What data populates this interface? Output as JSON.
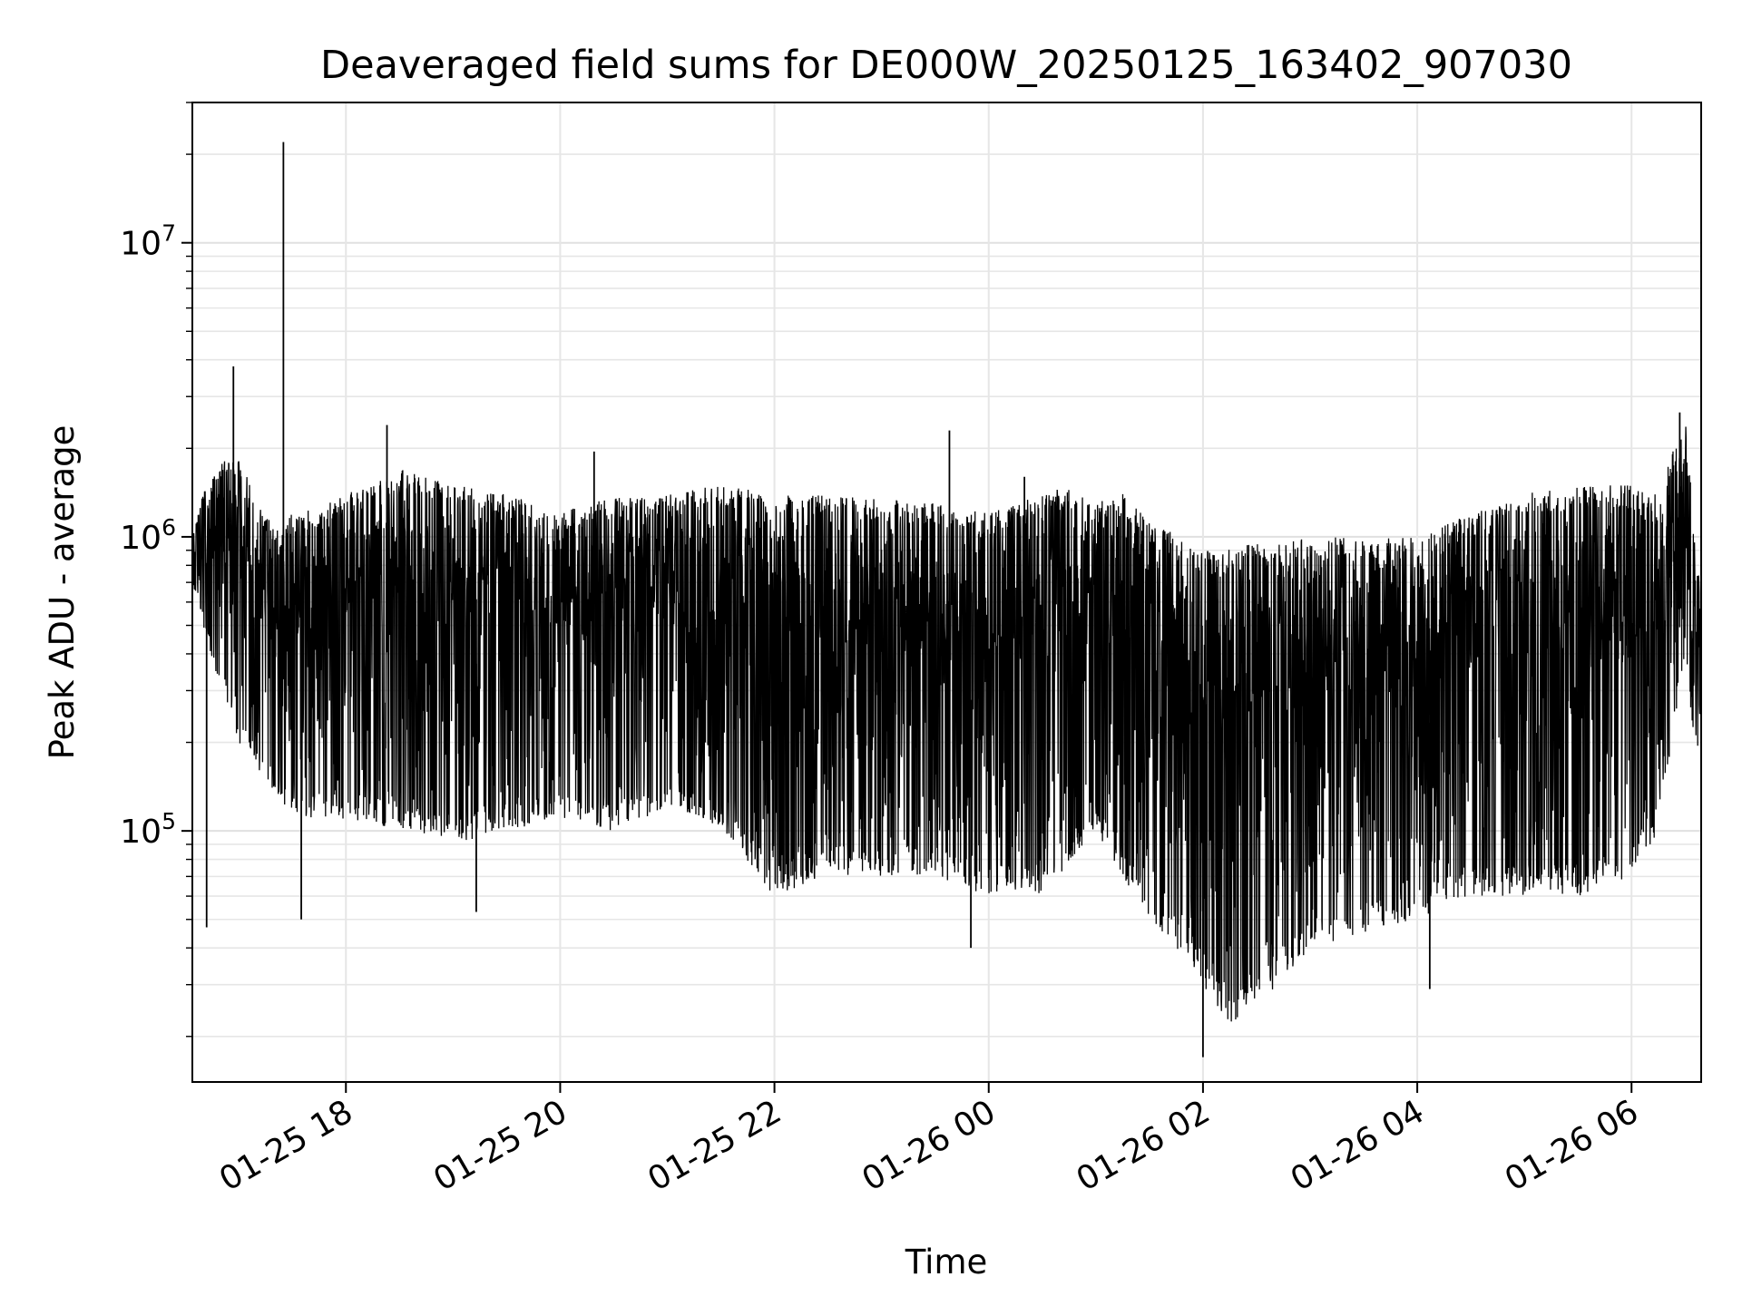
{
  "chart_data": {
    "type": "line",
    "title": "Deaveraged field sums for DE000W_20250125_163402_907030",
    "xlabel": "Time",
    "ylabel": "Peak ADU - average",
    "x_scale": "time",
    "y_scale": "log",
    "xlim": [
      "2025-01-25 16:34",
      "2025-01-26 06:39"
    ],
    "ylim": [
      14000,
      30000000
    ],
    "grid": true,
    "line_color": "#000000",
    "x_ticks": [
      "2025-01-25 18:00",
      "2025-01-25 20:00",
      "2025-01-25 22:00",
      "2025-01-26 00:00",
      "2025-01-26 02:00",
      "2025-01-26 04:00",
      "2025-01-26 06:00"
    ],
    "x_tick_labels": [
      "01-25 18",
      "01-25 20",
      "01-25 22",
      "01-26 00",
      "01-26 02",
      "01-26 04",
      "01-26 06"
    ],
    "y_ticks": [
      {
        "value": 100000,
        "base": "10",
        "exp": "5"
      },
      {
        "value": 1000000,
        "base": "10",
        "exp": "6"
      },
      {
        "value": 10000000,
        "base": "10",
        "exp": "7"
      }
    ],
    "series": [
      {
        "upper_envelope": {
          "x": [
            "2025-01-25 16:34",
            "2025-01-25 16:40",
            "2025-01-25 16:50",
            "2025-01-25 17:00",
            "2025-01-25 17:10",
            "2025-01-25 17:20",
            "2025-01-25 17:30",
            "2025-01-25 17:45",
            "2025-01-25 18:00",
            "2025-01-25 18:15",
            "2025-01-25 18:30",
            "2025-01-25 19:00",
            "2025-01-25 19:30",
            "2025-01-25 20:00",
            "2025-01-25 20:15",
            "2025-01-25 20:30",
            "2025-01-25 21:00",
            "2025-01-25 21:30",
            "2025-01-25 22:00",
            "2025-01-25 22:30",
            "2025-01-25 23:00",
            "2025-01-25 23:30",
            "2025-01-26 00:00",
            "2025-01-26 00:30",
            "2025-01-26 00:45",
            "2025-01-26 01:00",
            "2025-01-26 01:15",
            "2025-01-26 01:30",
            "2025-01-26 01:45",
            "2025-01-26 02:00",
            "2025-01-26 02:30",
            "2025-01-26 03:00",
            "2025-01-26 03:30",
            "2025-01-26 04:00",
            "2025-01-26 04:30",
            "2025-01-26 05:00",
            "2025-01-26 05:30",
            "2025-01-26 06:00",
            "2025-01-26 06:15",
            "2025-01-26 06:30",
            "2025-01-26 06:39"
          ],
          "y": [
            1000000,
            1400000,
            1800000,
            1900000,
            1300000,
            1100000,
            1200000,
            1250000,
            1400000,
            1500000,
            1700000,
            1500000,
            1400000,
            1200000,
            1300000,
            1350000,
            1400000,
            1500000,
            1400000,
            1400000,
            1350000,
            1300000,
            1200000,
            1400000,
            1500000,
            1300000,
            1400000,
            1200000,
            1000000,
            900000,
            950000,
            1000000,
            1000000,
            1000000,
            1200000,
            1400000,
            1500000,
            1500000,
            1400000,
            2600000,
            600000
          ]
        },
        "lower_envelope": {
          "x": [
            "2025-01-25 16:34",
            "2025-01-25 16:40",
            "2025-01-25 16:50",
            "2025-01-25 17:00",
            "2025-01-25 17:15",
            "2025-01-25 17:30",
            "2025-01-25 18:00",
            "2025-01-25 18:30",
            "2025-01-25 19:00",
            "2025-01-25 19:30",
            "2025-01-25 20:00",
            "2025-01-25 20:30",
            "2025-01-25 21:00",
            "2025-01-25 21:30",
            "2025-01-25 22:00",
            "2025-01-25 22:30",
            "2025-01-25 23:00",
            "2025-01-25 23:30",
            "2025-01-26 00:00",
            "2025-01-26 00:30",
            "2025-01-26 01:00",
            "2025-01-26 01:15",
            "2025-01-26 01:30",
            "2025-01-26 01:45",
            "2025-01-26 02:00",
            "2025-01-26 02:15",
            "2025-01-26 02:30",
            "2025-01-26 03:00",
            "2025-01-26 03:30",
            "2025-01-26 04:00",
            "2025-01-26 04:30",
            "2025-01-26 05:00",
            "2025-01-26 05:30",
            "2025-01-26 06:00",
            "2025-01-26 06:15",
            "2025-01-26 06:30",
            "2025-01-26 06:39"
          ],
          "y": [
            700000,
            500000,
            300000,
            200000,
            150000,
            110000,
            110000,
            100000,
            90000,
            100000,
            110000,
            100000,
            120000,
            100000,
            60000,
            70000,
            70000,
            70000,
            60000,
            60000,
            100000,
            70000,
            50000,
            40000,
            30000,
            22000,
            25000,
            40000,
            45000,
            50000,
            60000,
            60000,
            60000,
            70000,
            100000,
            400000,
            120000
          ]
        },
        "spikes": [
          {
            "x": "2025-01-25 16:42",
            "y": 47000
          },
          {
            "x": "2025-01-25 16:57",
            "y": 3800000
          },
          {
            "x": "2025-01-25 17:25",
            "y": 22000000
          },
          {
            "x": "2025-01-25 17:35",
            "y": 50000
          },
          {
            "x": "2025-01-25 18:23",
            "y": 2400000
          },
          {
            "x": "2025-01-25 19:13",
            "y": 53000
          },
          {
            "x": "2025-01-25 20:19",
            "y": 1950000
          },
          {
            "x": "2025-01-25 23:38",
            "y": 2300000
          },
          {
            "x": "2025-01-25 23:50",
            "y": 40000
          },
          {
            "x": "2025-01-26 00:20",
            "y": 1600000
          },
          {
            "x": "2025-01-26 02:00",
            "y": 17000
          },
          {
            "x": "2025-01-26 04:07",
            "y": 29000
          },
          {
            "x": "2025-01-26 06:27",
            "y": 2650000
          }
        ]
      }
    ]
  }
}
